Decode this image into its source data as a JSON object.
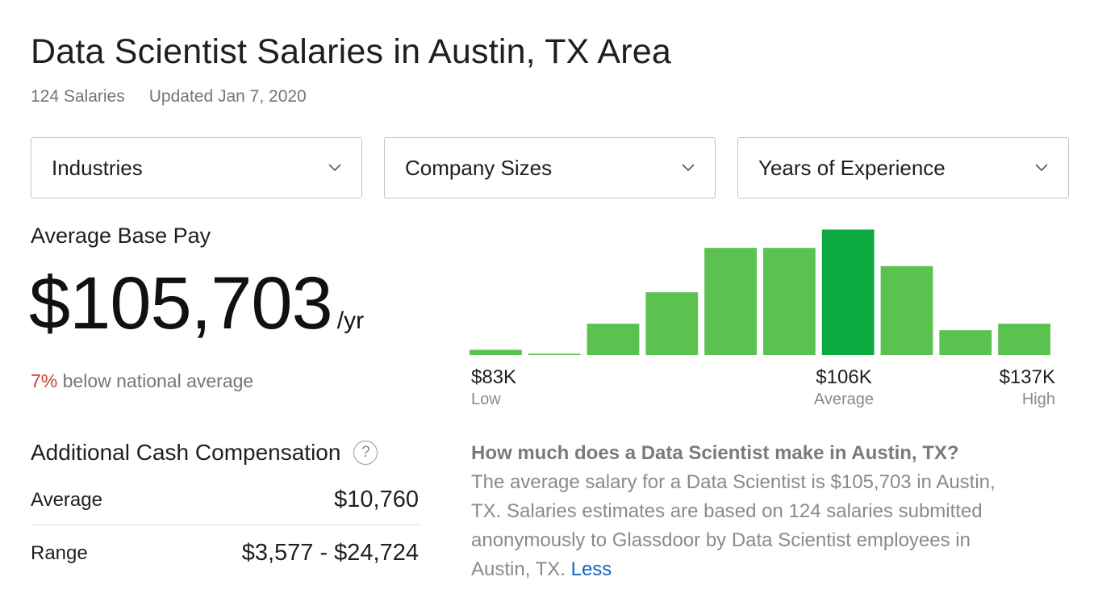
{
  "header": {
    "title": "Data Scientist Salaries in Austin, TX Area",
    "salary_count": "124 Salaries",
    "updated": "Updated Jan 7, 2020"
  },
  "filters": [
    {
      "label": "Industries"
    },
    {
      "label": "Company Sizes"
    },
    {
      "label": "Years of Experience"
    }
  ],
  "base_pay": {
    "label": "Average Base Pay",
    "amount": "$105,703",
    "unit": "/yr",
    "compare_pct": "7%",
    "compare_text": " below national average"
  },
  "histogram": {
    "low_value": "$83K",
    "low_label": "Low",
    "avg_value": "$106K",
    "avg_label": "Average",
    "high_value": "$137K",
    "high_label": "High"
  },
  "chart_data": {
    "type": "bar",
    "title": "",
    "xlabel": "",
    "ylabel": "",
    "values": [
      4,
      1,
      24,
      48,
      82,
      82,
      96,
      68,
      19,
      24
    ],
    "highlight_index": 6,
    "colors": {
      "bar": "#5bc250",
      "highlight": "#0caa41"
    },
    "x_ticks": [
      "$83K",
      "$106K",
      "$137K"
    ]
  },
  "additional_comp": {
    "title": "Additional Cash Compensation",
    "help_icon": "question-circle-icon",
    "rows": [
      {
        "label": "Average",
        "value": "$10,760"
      },
      {
        "label": "Range",
        "value": "$3,577 - $24,724"
      }
    ]
  },
  "description": {
    "question": "How much does a Data Scientist make in Austin, TX?",
    "body": "The average salary for a Data Scientist is $105,703 in Austin, TX. Salaries estimates are based on 124 salaries submitted anonymously to Glassdoor by Data Scientist employees in Austin, TX. ",
    "less_link": "Less"
  },
  "colors": {
    "accent_link": "#1861bf",
    "negative": "#c84031",
    "bar": "#5bc250",
    "bar_highlight": "#0caa41"
  }
}
